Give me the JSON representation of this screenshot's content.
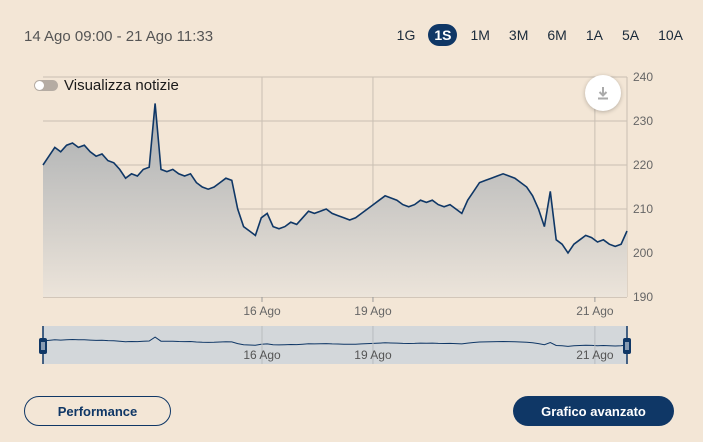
{
  "header": {
    "date_range": "14 Ago 09:00 - 21 Ago 11:33",
    "ranges": [
      "1G",
      "1S",
      "1M",
      "3M",
      "6M",
      "1A",
      "5A",
      "10A"
    ],
    "active_range": "1S"
  },
  "news_toggle": {
    "label": "Visualizza notizie",
    "enabled": false
  },
  "buttons": {
    "performance": "Performance",
    "advanced": "Grafico avanzato"
  },
  "chart_data": {
    "type": "area",
    "y_ticks": [
      "240",
      "230",
      "220",
      "210",
      "200",
      "190"
    ],
    "ylim": [
      190,
      240
    ],
    "x_ticks": [
      "16 Ago",
      "19 Ago",
      "21 Ago"
    ],
    "grid": true,
    "colors": {
      "line": "#0f3766",
      "fill_top": "#a9adb0",
      "fill_bottom": "#ece4da"
    },
    "series": [
      {
        "values": [
          220,
          222,
          224,
          223,
          224.5,
          225,
          224,
          224.5,
          223,
          222,
          222.5,
          221,
          220.5,
          219,
          217,
          218,
          217.5,
          219,
          219.5,
          234,
          219,
          218.5,
          219,
          218,
          217.5,
          218,
          216,
          215,
          214.5,
          215,
          216,
          217,
          216.5,
          210,
          206,
          205,
          204,
          208,
          209,
          206,
          205.5,
          206,
          207,
          206.5,
          208,
          209.5,
          209,
          209.5,
          210,
          209,
          208.5,
          208,
          207.5,
          208,
          209,
          210,
          211,
          212,
          213,
          212.5,
          212,
          211,
          210.5,
          211,
          212,
          211.5,
          212,
          211,
          210.5,
          211,
          210,
          209,
          212,
          214,
          216,
          216.5,
          217,
          217.5,
          218,
          217.5,
          217,
          216,
          215,
          213,
          210,
          206,
          214,
          203,
          202,
          200,
          202,
          203,
          204,
          203.5,
          202.5,
          203,
          202,
          201.5,
          202,
          205
        ]
      }
    ]
  }
}
